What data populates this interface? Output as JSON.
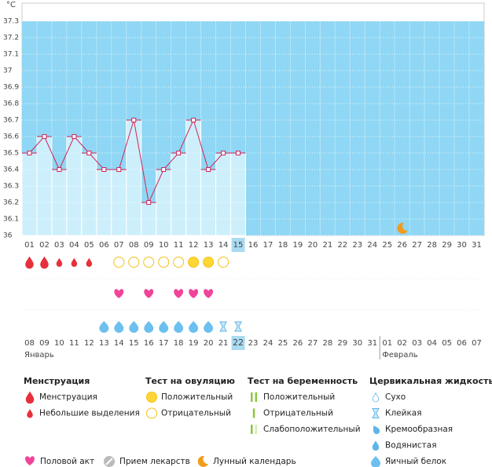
{
  "chart_data": {
    "type": "line",
    "y_label": "°C",
    "categories": [
      "01",
      "02",
      "03",
      "04",
      "05",
      "06",
      "07",
      "08",
      "09",
      "10",
      "11",
      "12",
      "13",
      "14",
      "15",
      "16",
      "17",
      "18",
      "19",
      "20",
      "21",
      "22",
      "23",
      "24",
      "25",
      "26",
      "27",
      "28",
      "29",
      "30",
      "31"
    ],
    "values": [
      36.5,
      36.6,
      36.4,
      36.6,
      36.5,
      36.4,
      36.4,
      36.7,
      36.2,
      36.4,
      36.5,
      36.7,
      36.4,
      36.5,
      36.5,
      null,
      null,
      null,
      null,
      null,
      null,
      null,
      null,
      null,
      null,
      null,
      null,
      null,
      null,
      null,
      null
    ],
    "ylim": [
      36,
      37.3
    ],
    "yticks": [
      36,
      36.1,
      36.2,
      36.3,
      36.4,
      36.5,
      36.6,
      36.7,
      36.8,
      36.9,
      37,
      37.1,
      37.2,
      37.3
    ],
    "grid": true,
    "color": "#d0245a",
    "bar_color": "#cdeffc",
    "background": "#8fd7f4",
    "highlight_index": 14,
    "moon_index": 25
  },
  "tracking": {
    "menstruation": [
      "drop-heavy",
      "drop-heavy",
      "drop-light",
      "drop-light",
      "drop-light",
      null,
      null,
      null,
      null,
      null,
      null,
      null,
      null,
      null,
      null,
      null,
      null,
      null,
      null,
      null,
      null,
      null,
      null,
      null,
      null,
      null,
      null,
      null,
      null,
      null,
      null
    ],
    "ovulation": [
      null,
      null,
      null,
      null,
      null,
      null,
      "ovu-negative",
      "ovu-negative",
      "ovu-negative",
      "ovu-negative",
      "ovu-negative",
      "ovu-positive",
      "ovu-positive",
      "ovu-negative",
      null,
      null,
      null,
      null,
      null,
      null,
      null,
      null,
      null,
      null,
      null,
      null,
      null,
      null,
      null,
      null,
      null
    ],
    "intercourse": [
      null,
      null,
      null,
      null,
      null,
      null,
      "heart",
      null,
      "heart",
      null,
      "heart",
      "heart",
      "heart",
      null,
      null,
      null,
      null,
      null,
      null,
      null,
      null,
      null,
      null,
      null,
      null,
      null,
      null,
      null,
      null,
      null,
      null
    ],
    "cervical": [
      null,
      null,
      null,
      null,
      null,
      "egg-white",
      "egg-white",
      "egg-white",
      "egg-white",
      "egg-white",
      "egg-white",
      "egg-white",
      "egg-white",
      "sticky",
      "sticky",
      null,
      null,
      null,
      null,
      null,
      null,
      null,
      null,
      null,
      null,
      null,
      null,
      null,
      null,
      null,
      null
    ]
  },
  "dates": {
    "days": [
      "08",
      "09",
      "10",
      "11",
      "12",
      "13",
      "14",
      "15",
      "16",
      "17",
      "18",
      "19",
      "20",
      "21",
      "22",
      "23",
      "24",
      "25",
      "26",
      "27",
      "28",
      "29",
      "30",
      "31",
      "01",
      "02",
      "03",
      "04",
      "05",
      "06",
      "07"
    ],
    "weekend": [
      false,
      false,
      false,
      false,
      true,
      true,
      false,
      false,
      false,
      false,
      false,
      true,
      true,
      false,
      false,
      false,
      false,
      false,
      true,
      true,
      false,
      false,
      false,
      false,
      false,
      true,
      true,
      false,
      false,
      false,
      false
    ],
    "months": [
      {
        "label": "Январь",
        "start": 0
      },
      {
        "label": "Февраль",
        "start": 24
      }
    ]
  },
  "legend": {
    "groups": [
      {
        "title": "Менструация",
        "items": [
          {
            "label": "Менструация",
            "icon": "drop-heavy"
          },
          {
            "label": "Небольшие выделения",
            "icon": "drop-light"
          }
        ]
      },
      {
        "title": "Тест на овуляцию",
        "items": [
          {
            "label": "Положительный",
            "icon": "ovu-positive"
          },
          {
            "label": "Отрицательный",
            "icon": "ovu-negative"
          }
        ]
      },
      {
        "title": "Тест на беременность",
        "items": [
          {
            "label": "Положительный",
            "icon": "test-positive"
          },
          {
            "label": "Отрицательный",
            "icon": "test-negative"
          },
          {
            "label": "Слабоположительный",
            "icon": "test-faint"
          }
        ]
      },
      {
        "title": "Цервикальная жидкость",
        "items": [
          {
            "label": "Сухо",
            "icon": "dry"
          },
          {
            "label": "Клейкая",
            "icon": "sticky"
          },
          {
            "label": "Кремообразная",
            "icon": "creamy"
          },
          {
            "label": "Водянистая",
            "icon": "watery"
          },
          {
            "label": "Яичный белок",
            "icon": "egg-white"
          }
        ]
      }
    ],
    "extra": [
      {
        "label": "Половой акт",
        "icon": "heart"
      },
      {
        "label": "Прием лекарств",
        "icon": "pill"
      },
      {
        "label": "Лунный календарь",
        "icon": "moon"
      }
    ]
  }
}
